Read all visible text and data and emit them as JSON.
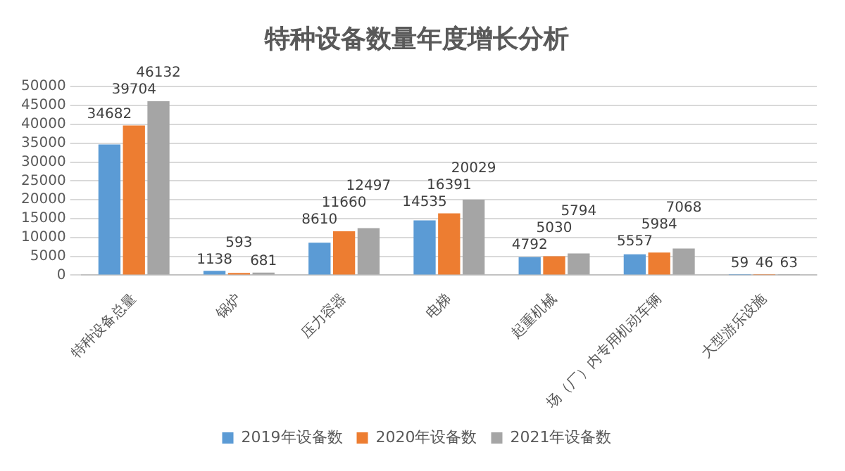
{
  "chart_data": {
    "type": "bar",
    "title": "特种设备数量年度增长分析",
    "categories": [
      "特种设备总量",
      "锅炉",
      "压力容器",
      "电梯",
      "起重机械",
      "场（厂）内专用机动车辆",
      "大型游乐设施"
    ],
    "series": [
      {
        "name": "2019年设备数",
        "color": "#5b9bd5",
        "values": [
          34682,
          1138,
          8610,
          14535,
          4792,
          5557,
          59
        ]
      },
      {
        "name": "2020年设备数",
        "color": "#ed7d31",
        "values": [
          39704,
          593,
          11660,
          16391,
          5030,
          5984,
          46
        ]
      },
      {
        "name": "2021年设备数",
        "color": "#a5a5a5",
        "values": [
          46132,
          681,
          12497,
          20029,
          5794,
          7068,
          63
        ]
      }
    ],
    "ylim": [
      0,
      50000
    ],
    "yticks": [
      0,
      5000,
      10000,
      15000,
      20000,
      25000,
      30000,
      35000,
      40000,
      45000,
      50000
    ],
    "grid": "y",
    "legend": "bottom",
    "data_labels": true
  }
}
